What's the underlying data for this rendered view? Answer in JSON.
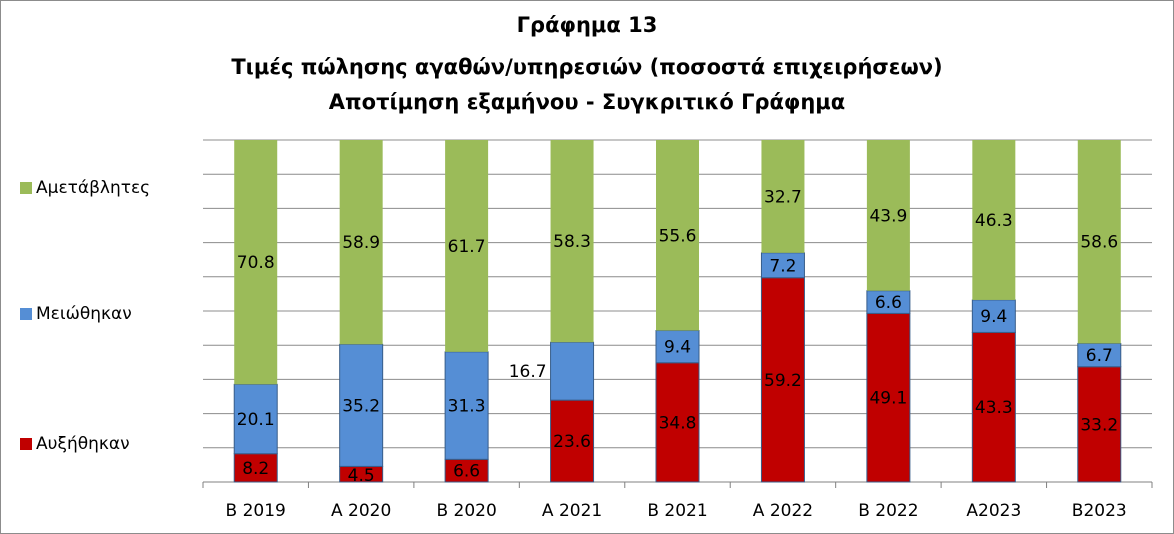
{
  "chart_data": {
    "type": "bar",
    "stacked": true,
    "percent_stacked": true,
    "title_lines": [
      "Γράφημα 13",
      "Τιμές πώλησης αγαθών/υπηρεσιών (ποσοστά επιχειρήσεων)",
      "Αποτίμηση εξαμήνου - Συγκριτικό Γράφημα"
    ],
    "categories": [
      "B 2019",
      "A 2020",
      "B 2020",
      "A 2021",
      "B 2021",
      "A 2022",
      "B 2022",
      "A2023",
      "B2023"
    ],
    "series": [
      {
        "name": "Αυξήθηκαν",
        "color": "#c00000",
        "values": [
          8.2,
          4.5,
          6.6,
          23.6,
          34.8,
          59.2,
          49.1,
          43.3,
          33.2
        ]
      },
      {
        "name": "Μειώθηκαν",
        "color": "#558ed5",
        "values": [
          20.1,
          35.2,
          31.3,
          16.7,
          9.4,
          7.2,
          6.6,
          9.4,
          6.7
        ]
      },
      {
        "name": "Αμετάβλητες",
        "color": "#9bbb59",
        "values": [
          70.8,
          58.9,
          61.7,
          58.3,
          55.6,
          32.7,
          43.9,
          46.3,
          58.6
        ]
      }
    ],
    "ylim": [
      0,
      100
    ],
    "grid": true,
    "legend_position": "left"
  }
}
